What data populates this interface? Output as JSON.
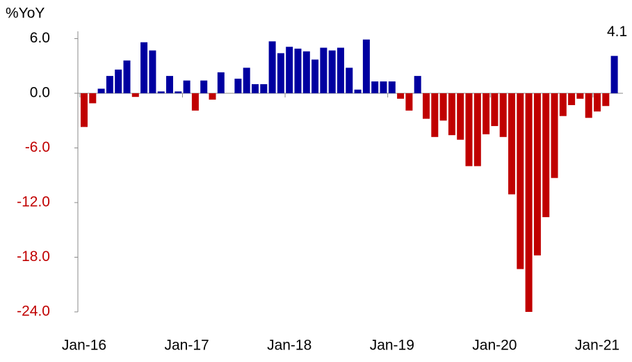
{
  "chart_data": {
    "type": "bar",
    "ylabel": "%YoY",
    "categories": [
      "Jan-16",
      null,
      null,
      null,
      null,
      null,
      null,
      null,
      null,
      null,
      null,
      null,
      "Jan-17",
      null,
      null,
      null,
      null,
      null,
      null,
      null,
      null,
      null,
      null,
      null,
      "Jan-18",
      null,
      null,
      null,
      null,
      null,
      null,
      null,
      null,
      null,
      null,
      null,
      "Jan-19",
      null,
      null,
      null,
      null,
      null,
      null,
      null,
      null,
      null,
      null,
      null,
      "Jan-20",
      null,
      null,
      null,
      null,
      null,
      null,
      null,
      null,
      null,
      null,
      null,
      "Jan-21",
      null,
      null
    ],
    "values": [
      -3.7,
      -1.1,
      0.5,
      1.9,
      2.6,
      3.6,
      -0.4,
      5.6,
      4.7,
      0.2,
      1.9,
      0.2,
      1.4,
      -1.9,
      1.4,
      -0.7,
      2.3,
      0,
      1.6,
      2.8,
      1.0,
      1.0,
      5.7,
      4.4,
      5.1,
      4.9,
      4.6,
      3.7,
      5.0,
      4.7,
      5.0,
      2.8,
      0.4,
      5.9,
      1.3,
      1.3,
      1.3,
      -0.6,
      -1.9,
      1.9,
      -2.8,
      -4.8,
      -3.0,
      -4.6,
      -5.1,
      -8.0,
      -8.0,
      -4.5,
      -3.6,
      -4.8,
      -11.1,
      -19.3,
      -24.0,
      -17.8,
      -13.6,
      -9.3,
      -2.5,
      -1.3,
      -0.6,
      -2.7,
      -2.0,
      -1.4,
      4.1
    ],
    "positive_color": "#0000a0",
    "negative_color": "#c00000",
    "ylim": [
      -24,
      6.8
    ],
    "yticks": [
      {
        "value": 6,
        "label": "6.0"
      },
      {
        "value": 0,
        "label": "0.0"
      },
      {
        "value": -6,
        "label": "-6.0"
      },
      {
        "value": -12,
        "label": "-12.0"
      },
      {
        "value": -18,
        "label": "-18.0"
      },
      {
        "value": -24,
        "label": "-24.0"
      }
    ],
    "labeled_points": [
      62
    ]
  }
}
